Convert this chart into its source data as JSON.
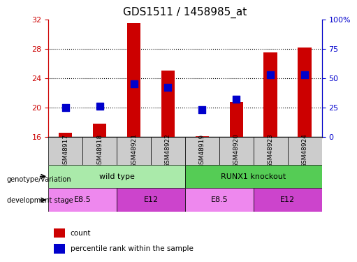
{
  "title": "GDS1511 / 1458985_at",
  "samples": [
    "GSM48917",
    "GSM48918",
    "GSM48921",
    "GSM48922",
    "GSM48919",
    "GSM48920",
    "GSM48923",
    "GSM48924"
  ],
  "count_values": [
    16.6,
    17.8,
    31.5,
    25.0,
    16.1,
    20.8,
    27.5,
    28.2
  ],
  "percentile_values": [
    25,
    26,
    45,
    42,
    23,
    32,
    53,
    53
  ],
  "ylim_left": [
    16,
    32
  ],
  "ylim_right": [
    0,
    100
  ],
  "yticks_left": [
    16,
    20,
    24,
    28,
    32
  ],
  "yticks_right": [
    0,
    25,
    50,
    75,
    100
  ],
  "bar_color": "#cc0000",
  "dot_color": "#0000cc",
  "bar_bottom": 16,
  "genotype_groups": [
    {
      "label": "wild type",
      "span": [
        0,
        4
      ],
      "color": "#aaeaaa"
    },
    {
      "label": "RUNX1 knockout",
      "span": [
        4,
        8
      ],
      "color": "#55cc55"
    }
  ],
  "stage_groups": [
    {
      "label": "E8.5",
      "span": [
        0,
        2
      ],
      "color": "#ee88ee"
    },
    {
      "label": "E12",
      "span": [
        2,
        4
      ],
      "color": "#cc44cc"
    },
    {
      "label": "E8.5",
      "span": [
        4,
        6
      ],
      "color": "#ee88ee"
    },
    {
      "label": "E12",
      "span": [
        6,
        8
      ],
      "color": "#cc44cc"
    }
  ],
  "legend_count_color": "#cc0000",
  "legend_pct_color": "#0000cc",
  "axis_label_color_left": "#cc0000",
  "axis_label_color_right": "#0000cc",
  "grid_color": "#000000",
  "background_color": "#ffffff",
  "plot_bg_color": "#ffffff",
  "bar_width": 0.4,
  "dot_size": 50,
  "sample_box_color": "#cccccc"
}
